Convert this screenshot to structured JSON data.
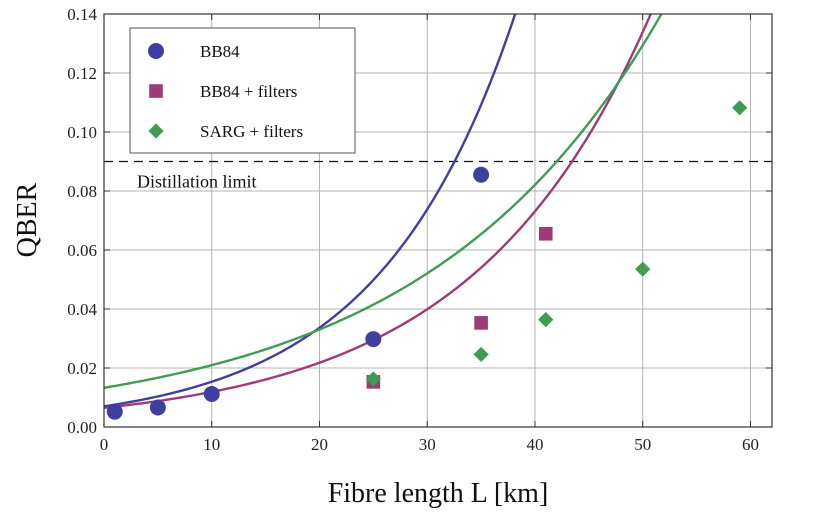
{
  "chart_data": {
    "type": "scatter",
    "xlabel": "Fibre length L [km]",
    "ylabel": "QBER",
    "xlim": [
      0,
      62
    ],
    "ylim": [
      0,
      0.14
    ],
    "x_ticks": [
      0,
      10,
      20,
      30,
      40,
      50,
      60
    ],
    "x_tick_labels": [
      "0",
      "10",
      "20",
      "30",
      "40",
      "50",
      "60"
    ],
    "y_ticks": [
      0,
      0.02,
      0.04,
      0.06,
      0.08,
      0.1,
      0.12,
      0.14
    ],
    "y_tick_labels": [
      "0.00",
      "0.02",
      "0.04",
      "0.06",
      "0.08",
      "0.10",
      "0.12",
      "0.14"
    ],
    "grid": true,
    "legend_position": "top-left",
    "reference_line": {
      "y": 0.09,
      "style": "dashed",
      "label": "Distillation limit"
    },
    "series": [
      {
        "name": "BB84",
        "marker": "circle",
        "color": "#3f3f9f",
        "x": [
          1,
          5,
          10,
          25,
          35
        ],
        "y": [
          0.0052,
          0.0066,
          0.0112,
          0.0298,
          0.0855
        ],
        "fit": {
          "y0": 0.007,
          "growth": 0.0785
        }
      },
      {
        "name": "BB84 + filters",
        "marker": "square",
        "color": "#9c3b76",
        "x": [
          25,
          35,
          41
        ],
        "y": [
          0.0153,
          0.0353,
          0.0655
        ],
        "fit": {
          "y0": 0.0065,
          "growth": 0.0605
        }
      },
      {
        "name": "SARG + filters",
        "marker": "diamond",
        "color": "#3f9c55",
        "x": [
          25,
          35,
          41,
          50,
          59
        ],
        "y": [
          0.0163,
          0.0246,
          0.0364,
          0.0535,
          0.1082
        ],
        "fit": {
          "y0": 0.0133,
          "growth": 0.0455
        }
      }
    ]
  }
}
